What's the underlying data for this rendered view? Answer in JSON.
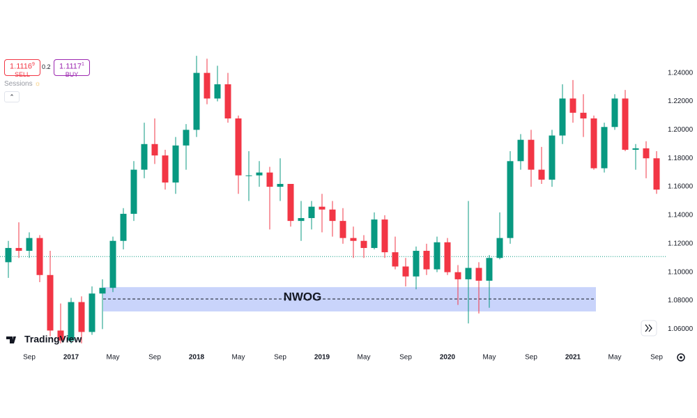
{
  "chart_data": {
    "type": "candlestick",
    "categories": [
      null,
      null,
      "Sep",
      null,
      null,
      null,
      "2017",
      null,
      null,
      null,
      "May",
      null,
      null,
      null,
      "Sep",
      null,
      null,
      null,
      "2018",
      null,
      null,
      null,
      "May",
      null,
      null,
      null,
      "Sep",
      null,
      null,
      null,
      "2019",
      null,
      null,
      null,
      "May",
      null,
      null,
      null,
      "Sep",
      null,
      null,
      null,
      "2020",
      null,
      null,
      null,
      "May",
      null,
      null,
      null,
      "Sep",
      null,
      null,
      null,
      "2021",
      null,
      null,
      null,
      "May",
      null,
      null,
      null,
      "Sep"
    ],
    "open": [
      1.107,
      1.117,
      1.115,
      1.124,
      1.098,
      1.059,
      1.052,
      1.079,
      1.058,
      1.085,
      1.089,
      1.122,
      1.141,
      1.172,
      1.19,
      1.182,
      1.163,
      1.189,
      1.2,
      1.24,
      1.222,
      1.232,
      1.208,
      1.168,
      1.168,
      1.17,
      1.16,
      1.162,
      1.136,
      1.138,
      1.146,
      1.144,
      1.136,
      1.124,
      1.122,
      1.117,
      1.137,
      1.114,
      1.104,
      1.097,
      1.115,
      1.102,
      1.121,
      1.1,
      1.095,
      1.103,
      1.094,
      1.11,
      1.124,
      1.178,
      1.193,
      1.172,
      1.165,
      1.196,
      1.222,
      1.212,
      1.208,
      1.173,
      1.202,
      1.222,
      1.186,
      1.187,
      1.18
    ],
    "high": [
      1.122,
      1.135,
      1.128,
      1.126,
      1.115,
      1.078,
      1.082,
      1.083,
      1.09,
      1.095,
      1.125,
      1.145,
      1.178,
      1.205,
      1.208,
      1.186,
      1.195,
      1.204,
      1.252,
      1.25,
      1.245,
      1.24,
      1.21,
      1.185,
      1.178,
      1.174,
      1.18,
      1.162,
      1.15,
      1.15,
      1.155,
      1.15,
      1.145,
      1.132,
      1.126,
      1.142,
      1.14,
      1.125,
      1.11,
      1.118,
      1.12,
      1.125,
      1.124,
      1.105,
      1.15,
      1.107,
      1.112,
      1.142,
      1.185,
      1.197,
      1.2,
      1.188,
      1.2,
      1.232,
      1.235,
      1.225,
      1.21,
      1.205,
      1.225,
      1.228,
      1.19,
      1.192,
      1.185
    ],
    "low": [
      1.096,
      1.11,
      1.11,
      1.093,
      1.055,
      1.05,
      1.05,
      1.05,
      1.056,
      1.06,
      1.086,
      1.116,
      1.136,
      1.166,
      1.176,
      1.158,
      1.155,
      1.172,
      1.195,
      1.218,
      1.22,
      1.205,
      1.155,
      1.15,
      1.16,
      1.13,
      1.15,
      1.132,
      1.122,
      1.13,
      1.128,
      1.125,
      1.12,
      1.11,
      1.11,
      1.116,
      1.11,
      1.102,
      1.09,
      1.088,
      1.098,
      1.1,
      1.098,
      1.077,
      1.064,
      1.071,
      1.075,
      1.109,
      1.12,
      1.172,
      1.16,
      1.162,
      1.16,
      1.19,
      1.205,
      1.195,
      1.172,
      1.17,
      1.2,
      1.185,
      1.172,
      1.166,
      1.155
    ],
    "close": [
      1.117,
      1.115,
      1.124,
      1.098,
      1.059,
      1.052,
      1.079,
      1.058,
      1.085,
      1.089,
      1.122,
      1.141,
      1.172,
      1.19,
      1.182,
      1.163,
      1.189,
      1.2,
      1.24,
      1.222,
      1.232,
      1.208,
      1.168,
      1.168,
      1.17,
      1.16,
      1.162,
      1.136,
      1.138,
      1.146,
      1.144,
      1.136,
      1.124,
      1.122,
      1.117,
      1.137,
      1.114,
      1.104,
      1.097,
      1.115,
      1.102,
      1.121,
      1.1,
      1.095,
      1.103,
      1.094,
      1.11,
      1.124,
      1.178,
      1.193,
      1.172,
      1.165,
      1.196,
      1.222,
      1.212,
      1.208,
      1.173,
      1.202,
      1.222,
      1.186,
      1.187,
      1.18,
      1.158
    ],
    "up_color": "#089981",
    "down_color": "#f23645",
    "ylim": [
      1.0465,
      1.2545
    ],
    "yticks": [
      {
        "value": 1.06,
        "label": "1.06000"
      },
      {
        "value": 1.08,
        "label": "1.08000"
      },
      {
        "value": 1.1,
        "label": "1.10000"
      },
      {
        "value": 1.12,
        "label": "1.12000"
      },
      {
        "value": 1.14,
        "label": "1.14000"
      },
      {
        "value": 1.16,
        "label": "1.16000"
      },
      {
        "value": 1.18,
        "label": "1.18000"
      },
      {
        "value": 1.2,
        "label": "1.20000"
      },
      {
        "value": 1.22,
        "label": "1.22000"
      },
      {
        "value": 1.24,
        "label": "1.24000"
      }
    ],
    "grid": false,
    "price_line": 1.111,
    "zone": {
      "label": "NWOG",
      "top": 1.0895,
      "bottom": 1.0724,
      "mid": 1.0812,
      "color": "#c9d4fb"
    }
  },
  "widget": {
    "sell_price": "1.1116",
    "sell_pip": "9",
    "sell_label": "SELL",
    "spread": "0.2",
    "buy_price": "1.1117",
    "buy_pip": "1",
    "buy_label": "BUY",
    "sessions": "Sessions"
  },
  "logo": "TradingView"
}
